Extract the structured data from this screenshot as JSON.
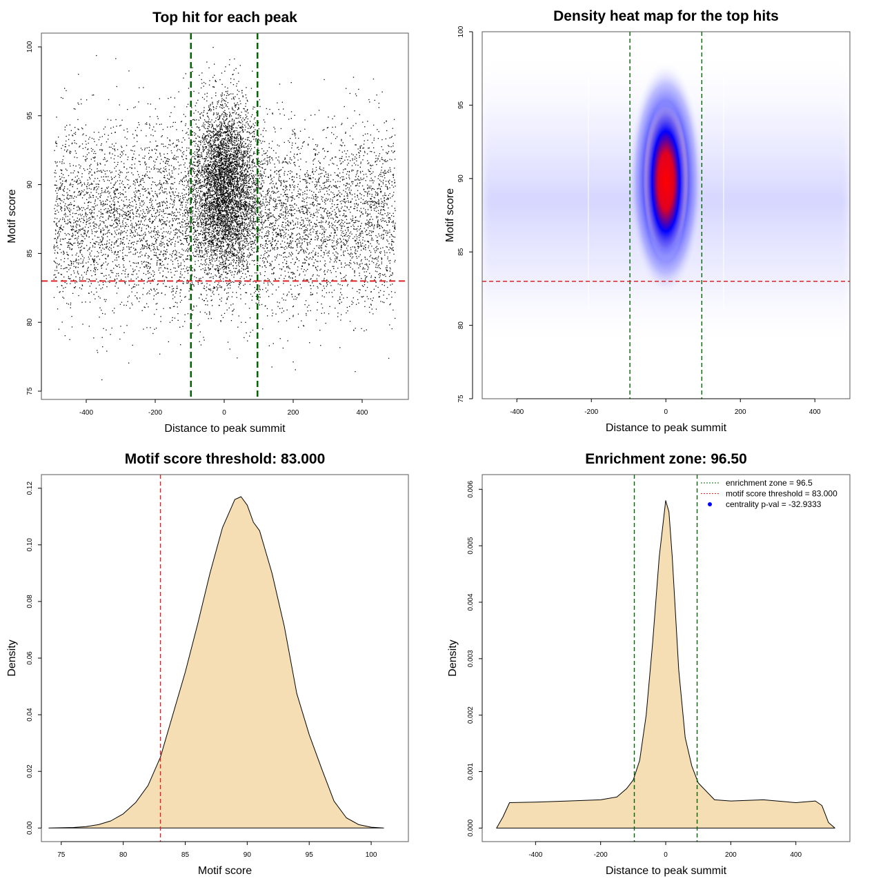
{
  "chart_data": [
    {
      "type": "scatter",
      "title": "Top hit for each peak",
      "xlabel": "Distance to peak summit",
      "ylabel": "Motif score",
      "xlim": [
        -530,
        534
      ],
      "ylim": [
        74.4,
        101
      ],
      "xticks": [
        -400,
        -200,
        0,
        200,
        400
      ],
      "yticks": [
        75,
        80,
        85,
        90,
        95,
        100
      ],
      "vlines": [
        {
          "x": -96.5,
          "color": "#006400"
        },
        {
          "x": 96.5,
          "color": "#006400"
        }
      ],
      "hlines": [
        {
          "y": 83,
          "color": "#e02020"
        }
      ],
      "point_color": "#000000"
    },
    {
      "type": "heatmap",
      "title": "Density heat map for the top hits",
      "xlabel": "Distance to peak summit",
      "ylabel": "Motif score",
      "xlim": [
        -493,
        494
      ],
      "ylim": [
        75,
        100
      ],
      "xticks": [
        -400,
        -200,
        0,
        200,
        400
      ],
      "yticks": [
        75,
        80,
        85,
        90,
        95,
        100
      ],
      "vlines": [
        {
          "x": -96.5,
          "color": "#006400"
        },
        {
          "x": 96.5,
          "color": "#006400"
        }
      ],
      "hlines": [
        {
          "y": 83,
          "color": "#e02020"
        }
      ],
      "peak": {
        "x": 0,
        "y": 90
      },
      "colors": [
        "#ffffff",
        "#0000ff",
        "#ff0000"
      ]
    },
    {
      "type": "area",
      "title": "Motif score threshold: 83.000",
      "xlabel": "Motif score",
      "ylabel": "Density",
      "xlim": [
        73.4,
        103
      ],
      "ylim": [
        -0.0048,
        0.1248
      ],
      "xticks": [
        75,
        80,
        85,
        90,
        95,
        100
      ],
      "yticks": [
        0.0,
        0.02,
        0.04,
        0.06,
        0.08,
        0.1,
        0.12
      ],
      "ytick_labels": [
        "0.00",
        "0.02",
        "0.04",
        "0.06",
        "0.08",
        "0.10",
        "0.12"
      ],
      "vlines": [
        {
          "x": 83,
          "color": "#e02020"
        }
      ],
      "fill": "#f5deb3",
      "x": [
        74,
        76,
        77,
        78,
        79,
        80,
        81,
        82,
        83,
        84,
        85,
        86,
        87,
        88,
        89,
        89.5,
        90,
        90.5,
        91,
        92,
        93,
        94,
        95,
        96,
        97,
        98,
        99,
        100,
        101
      ],
      "y": [
        0,
        0.0002,
        0.0005,
        0.0012,
        0.0025,
        0.005,
        0.009,
        0.015,
        0.025,
        0.04,
        0.055,
        0.072,
        0.09,
        0.106,
        0.116,
        0.117,
        0.114,
        0.108,
        0.105,
        0.09,
        0.071,
        0.0475,
        0.033,
        0.021,
        0.0095,
        0.0036,
        0.0012,
        0.0003,
        0
      ]
    },
    {
      "type": "area",
      "title": "Enrichment zone: 96.50",
      "xlabel": "Distance to peak summit",
      "ylabel": "Density",
      "xlim": [
        -564,
        566
      ],
      "ylim": [
        -0.00024,
        0.00626
      ],
      "xticks": [
        -400,
        -200,
        0,
        200,
        400
      ],
      "yticks": [
        0,
        0.001,
        0.002,
        0.003,
        0.004,
        0.005,
        0.006
      ],
      "ytick_labels": [
        "0.000",
        "0.001",
        "0.002",
        "0.003",
        "0.004",
        "0.005",
        "0.006"
      ],
      "vlines": [
        {
          "x": -96.5,
          "color": "#006400"
        },
        {
          "x": 96.5,
          "color": "#006400"
        }
      ],
      "fill": "#f5deb3",
      "x": [
        -520,
        -500,
        -480,
        -400,
        -300,
        -200,
        -150,
        -120,
        -100,
        -80,
        -60,
        -40,
        -20,
        0,
        10,
        20,
        40,
        60,
        80,
        100,
        150,
        200,
        300,
        400,
        460,
        480,
        500,
        520
      ],
      "y": [
        0,
        0.0002,
        0.00045,
        0.00046,
        0.00048,
        0.0005,
        0.00055,
        0.0007,
        0.00085,
        0.0012,
        0.002,
        0.0033,
        0.0048,
        0.0058,
        0.0056,
        0.0048,
        0.0028,
        0.0016,
        0.0011,
        0.0008,
        0.0005,
        0.00048,
        0.0005,
        0.00045,
        0.00048,
        0.0004,
        0.0001,
        0
      ],
      "legend": {
        "position": "top-right",
        "items": [
          {
            "label": "enrichment zone = 96.5",
            "color": "#006400",
            "style": "dotted-line"
          },
          {
            "label": "motif score threshold = 83.000",
            "color": "#e02020",
            "style": "dotted-line"
          },
          {
            "label": "centrality p-val = -32.9333",
            "color": "#0000ff",
            "style": "point"
          }
        ]
      }
    }
  ]
}
